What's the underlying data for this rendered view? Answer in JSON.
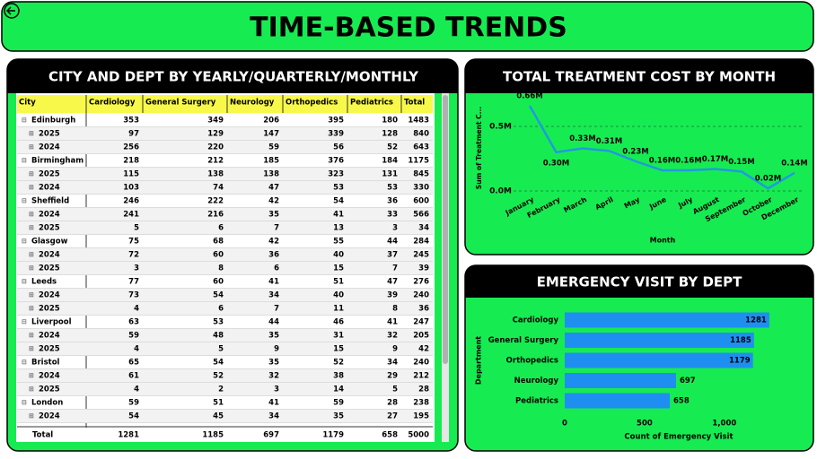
{
  "header": {
    "title": "TIME-BASED TRENDS"
  },
  "table": {
    "title": "CITY AND DEPT BY YEARLY/QUARTERLY/MONTHLY",
    "columns": [
      "City",
      "Cardiology",
      "General Surgery",
      "Neurology",
      "Orthopedics",
      "Pediatrics",
      "Total"
    ],
    "cities": [
      {
        "name": "Edinburgh",
        "values": [
          353,
          349,
          206,
          395,
          180,
          1483
        ],
        "years": [
          {
            "name": "2025",
            "values": [
              97,
              129,
              147,
              339,
              128,
              840
            ]
          },
          {
            "name": "2024",
            "values": [
              256,
              220,
              59,
              56,
              52,
              643
            ]
          }
        ]
      },
      {
        "name": "Birmingham",
        "values": [
          218,
          212,
          185,
          376,
          184,
          1175
        ],
        "years": [
          {
            "name": "2025",
            "values": [
              115,
              138,
              138,
              323,
              131,
              845
            ]
          },
          {
            "name": "2024",
            "values": [
              103,
              74,
              47,
              53,
              53,
              330
            ]
          }
        ]
      },
      {
        "name": "Sheffield",
        "values": [
          246,
          222,
          42,
          54,
          36,
          600
        ],
        "years": [
          {
            "name": "2024",
            "values": [
              241,
              216,
              35,
              41,
              33,
              566
            ]
          },
          {
            "name": "2025",
            "values": [
              5,
              6,
              7,
              13,
              3,
              34
            ]
          }
        ]
      },
      {
        "name": "Glasgow",
        "values": [
          75,
          68,
          42,
          55,
          44,
          284
        ],
        "years": [
          {
            "name": "2024",
            "values": [
              72,
              60,
              36,
              40,
              37,
              245
            ]
          },
          {
            "name": "2025",
            "values": [
              3,
              8,
              6,
              15,
              7,
              39
            ]
          }
        ]
      },
      {
        "name": "Leeds",
        "values": [
          77,
          60,
          41,
          51,
          47,
          276
        ],
        "years": [
          {
            "name": "2024",
            "values": [
              73,
              54,
              34,
              40,
              39,
              240
            ]
          },
          {
            "name": "2025",
            "values": [
              4,
              6,
              7,
              11,
              8,
              36
            ]
          }
        ]
      },
      {
        "name": "Liverpool",
        "values": [
          63,
          53,
          44,
          46,
          41,
          247
        ],
        "years": [
          {
            "name": "2024",
            "values": [
              59,
              48,
              35,
              31,
              32,
              205
            ]
          },
          {
            "name": "2025",
            "values": [
              4,
              5,
              9,
              15,
              9,
              42
            ]
          }
        ]
      },
      {
        "name": "Bristol",
        "values": [
          65,
          54,
          35,
          52,
          34,
          240
        ],
        "years": [
          {
            "name": "2024",
            "values": [
              61,
              52,
              32,
              38,
              29,
              212
            ]
          },
          {
            "name": "2025",
            "values": [
              4,
              2,
              3,
              14,
              5,
              28
            ]
          }
        ]
      },
      {
        "name": "London",
        "values": [
          59,
          51,
          41,
          59,
          28,
          238
        ],
        "years": [
          {
            "name": "2024",
            "values": [
              54,
              45,
              34,
              35,
              27,
              195
            ]
          }
        ]
      }
    ],
    "total": {
      "label": "Total",
      "values": [
        1281,
        1185,
        697,
        1179,
        658,
        5000
      ]
    }
  },
  "chart_data": [
    {
      "type": "line",
      "title": "TOTAL TREATMENT COST BY MONTH",
      "y_label": "Sum of Treatment C...",
      "x_label": "Month",
      "categories": [
        "January",
        "February",
        "March",
        "April",
        "May",
        "June",
        "July",
        "August",
        "September",
        "October",
        "December"
      ],
      "values": [
        0.66,
        0.3,
        0.33,
        0.31,
        0.23,
        0.16,
        0.16,
        0.17,
        0.15,
        0.02,
        0.14
      ],
      "value_labels": [
        "0.66M",
        "0.30M",
        "0.33M",
        "0.31M",
        "0.23M",
        "0.16M",
        "0.16M",
        "0.17M",
        "0.15M",
        "0.02M",
        "0.14M"
      ],
      "color": "#1f9bde",
      "ylim": [
        0,
        0.75
      ],
      "yticks": [
        {
          "value": 0,
          "label": "0.0M"
        },
        {
          "value": 0.5,
          "label": "0.5M"
        }
      ],
      "grid": true
    },
    {
      "type": "barh",
      "title": "EMERGENCY VISIT BY DEPT",
      "y_label": "Department",
      "x_label": "Count of Emergency Visit",
      "categories": [
        "Cardiology",
        "General Surgery",
        "Orthopedics",
        "Neurology",
        "Pediatrics"
      ],
      "values": [
        1281,
        1185,
        1179,
        697,
        658
      ],
      "color": "#1e8ff0",
      "xlim": [
        0,
        1400
      ],
      "xticks": [
        0,
        500,
        {
          "value": 1000,
          "label": "1,000"
        }
      ]
    }
  ]
}
